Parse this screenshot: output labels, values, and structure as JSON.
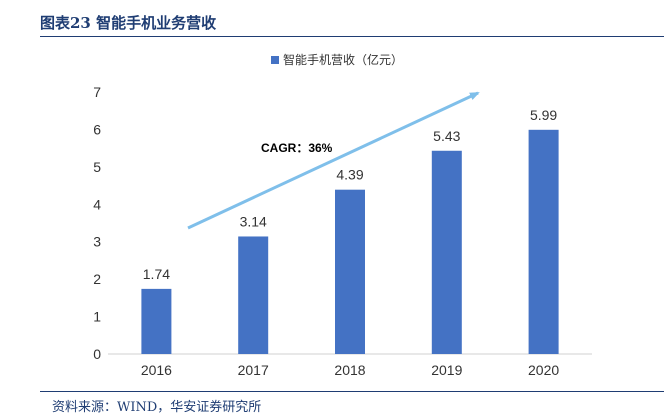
{
  "header": {
    "title": "图表23 智能手机业务营收"
  },
  "footer": {
    "source": "资料来源：WIND，华安证券研究所"
  },
  "colors": {
    "bar": "#4472c4",
    "arrow": "#7fbfea",
    "title": "#1f3d73",
    "text": "#333333"
  },
  "chart_data": {
    "type": "bar",
    "title": "",
    "xlabel": "",
    "ylabel": "",
    "categories": [
      "2016",
      "2017",
      "2018",
      "2019",
      "2020"
    ],
    "series": [
      {
        "name": "智能手机营收（亿元）",
        "values": [
          1.74,
          3.14,
          4.39,
          5.43,
          5.99
        ]
      }
    ],
    "data_labels": [
      "1.74",
      "3.14",
      "4.39",
      "5.43",
      "5.99"
    ],
    "ylim": [
      0,
      7
    ],
    "yticks": [
      "0",
      "1",
      "2",
      "3",
      "4",
      "5",
      "6",
      "7"
    ],
    "grid": false,
    "legend_position": "top-center",
    "annotation": "CAGR：36%"
  }
}
